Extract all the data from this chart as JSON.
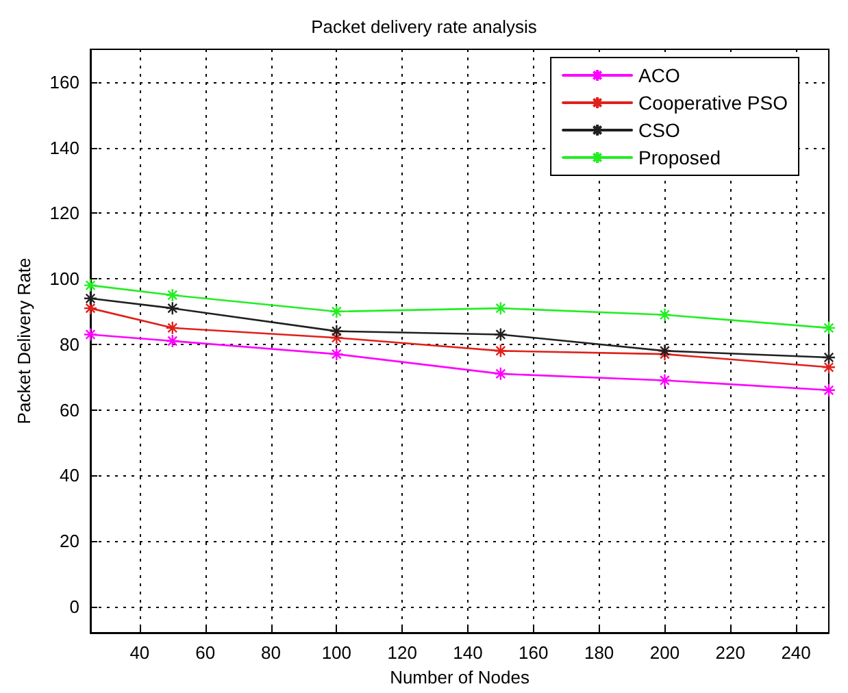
{
  "chart_data": {
    "type": "line",
    "title": "Packet delivery rate analysis",
    "xlabel": "Number of Nodes",
    "ylabel": "Packet Delivery Rate",
    "x": [
      25,
      50,
      100,
      150,
      200,
      250
    ],
    "series": [
      {
        "name": "ACO",
        "color": "#ff00ff",
        "values": [
          83,
          81,
          77,
          71,
          69,
          66
        ]
      },
      {
        "name": "Cooperative PSO",
        "color": "#e0201b",
        "values": [
          91,
          85,
          82,
          78,
          77,
          73
        ]
      },
      {
        "name": "CSO",
        "color": "#202020",
        "values": [
          94,
          91,
          84,
          83,
          78,
          76
        ]
      },
      {
        "name": "Proposed",
        "color": "#22ee22",
        "values": [
          98,
          95,
          90,
          91,
          89,
          85
        ]
      }
    ],
    "xlim": [
      25,
      250
    ],
    "xticks": [
      40,
      60,
      80,
      100,
      120,
      140,
      160,
      180,
      200,
      220,
      240
    ],
    "ylim": [
      -8,
      170
    ],
    "yticks": [
      0,
      20,
      40,
      60,
      80,
      100,
      120,
      140,
      160
    ],
    "grid": true,
    "legend": "top right",
    "marker": "cross",
    "line_style": "solid"
  }
}
